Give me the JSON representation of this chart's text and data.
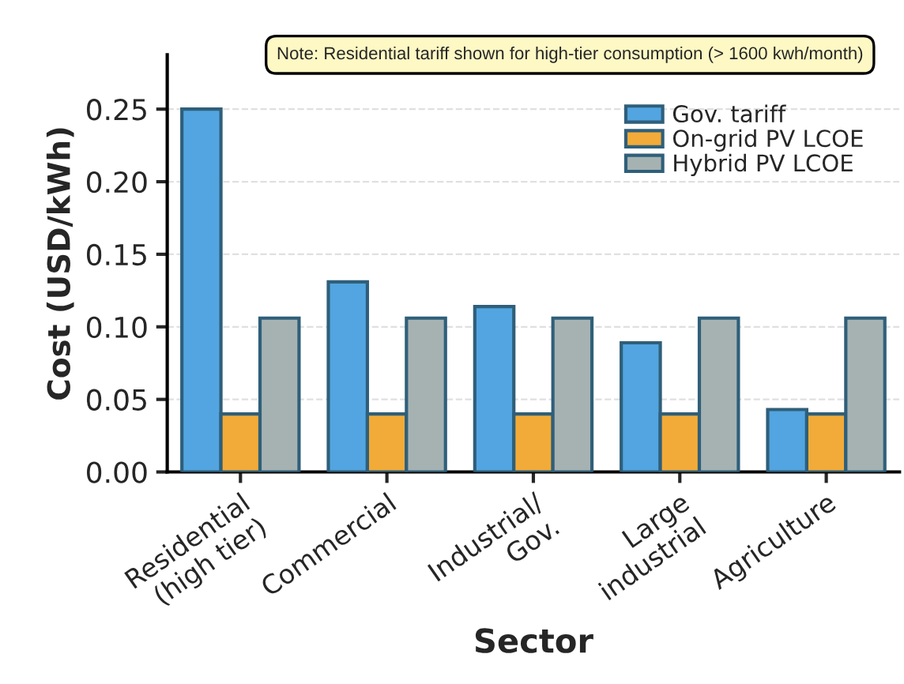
{
  "chart_data": {
    "type": "bar",
    "xlabel": "Sector",
    "ylabel": "Cost (USD/kWh)",
    "categories": [
      "Residential\n(high tier)",
      "Commercial",
      "Industrial/\nGov.",
      "Large\nindustrial",
      "Agriculture"
    ],
    "series": [
      {
        "name": "Gov. tariff",
        "color": "#52a5e0",
        "values": [
          0.25,
          0.131,
          0.114,
          0.089,
          0.043
        ]
      },
      {
        "name": "On-grid PV LCOE",
        "color": "#f2ab38",
        "values": [
          0.04,
          0.04,
          0.04,
          0.04,
          0.04
        ]
      },
      {
        "name": "Hybrid PV LCOE",
        "color": "#a6b2b2",
        "values": [
          0.106,
          0.106,
          0.106,
          0.106,
          0.106
        ]
      }
    ],
    "ylim": [
      0,
      0.2875
    ],
    "yticks": [
      {
        "value": 0,
        "label": "0.00"
      },
      {
        "value": 0.05,
        "label": "0.05"
      },
      {
        "value": 0.1,
        "label": "0.10"
      },
      {
        "value": 0.15,
        "label": "0.15"
      },
      {
        "value": 0.2,
        "label": "0.20"
      },
      {
        "value": 0.25,
        "label": "0.25"
      }
    ],
    "grid": "y",
    "legend": "top right",
    "annotations": [
      "Note: Residential tariff shown for high-tier consumption (> 1600 kwh/month)"
    ]
  }
}
